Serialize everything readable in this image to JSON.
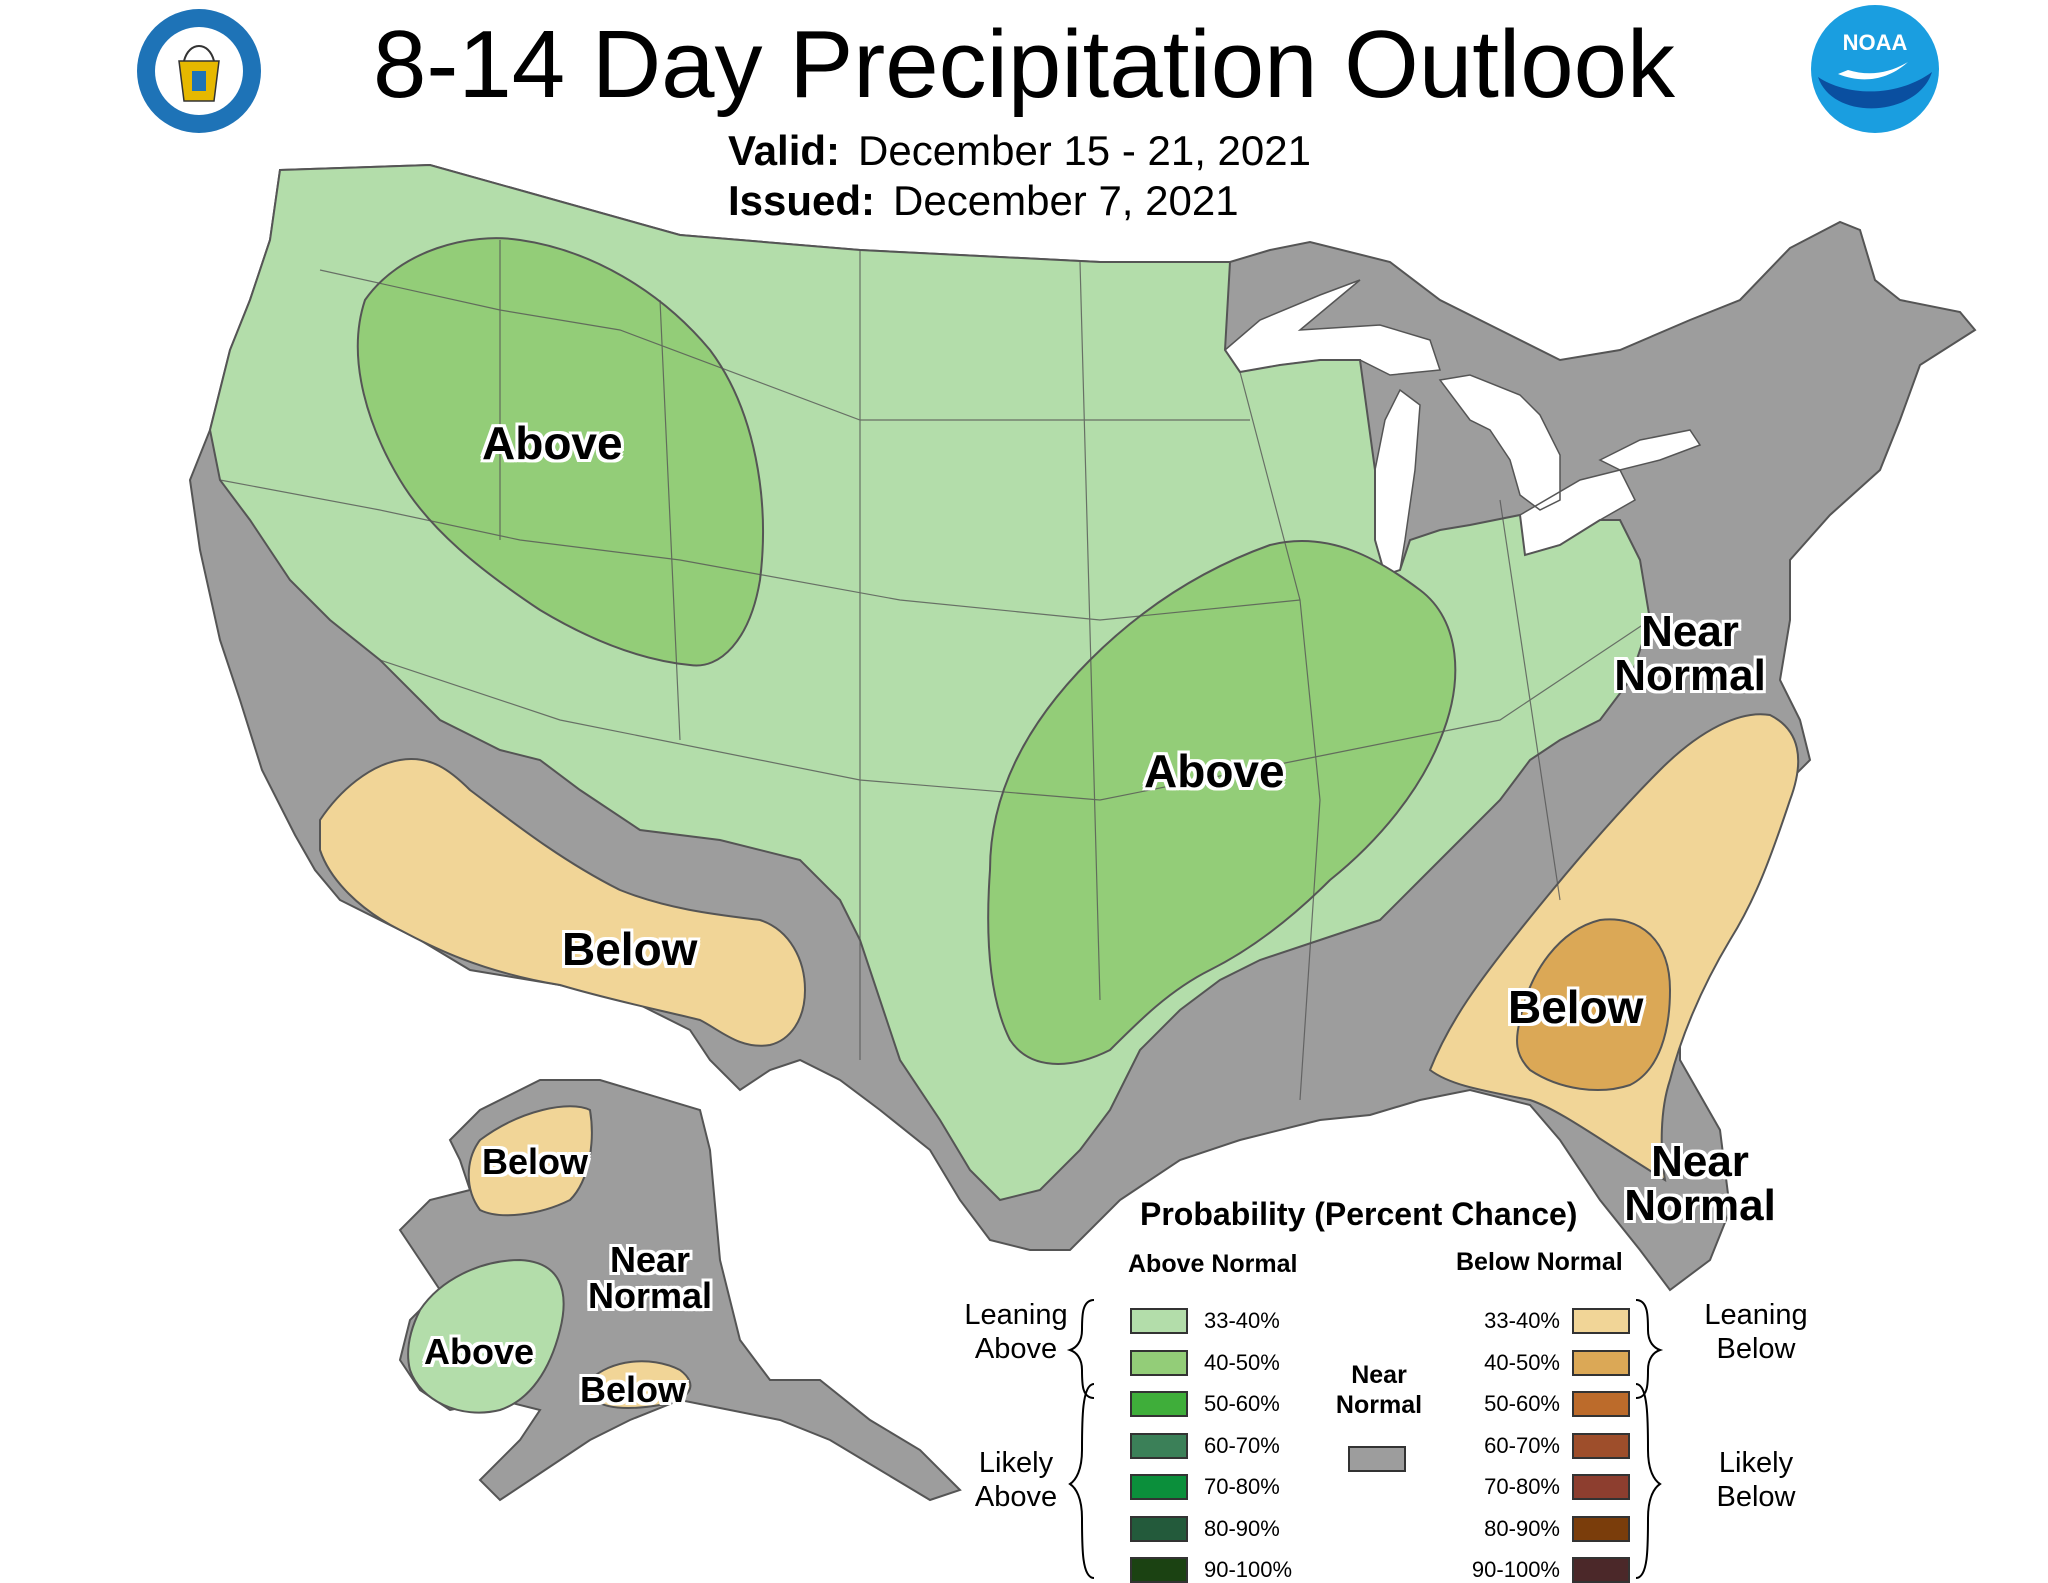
{
  "header": {
    "title": "8-14 Day Precipitation Outlook",
    "valid_label": "Valid:",
    "valid_value": "December 15 - 21, 2021",
    "issued_label": "Issued:",
    "issued_value": "December 7, 2021"
  },
  "logos": {
    "commerce": "department-of-commerce-seal",
    "noaa": "NOAA"
  },
  "map_labels": {
    "northwest_above": "Above",
    "central_above": "Above",
    "southwest_below": "Below",
    "southeast_below": "Below",
    "mid_atlantic_near_normal": "Near Normal",
    "florida_near_normal": "Near Normal",
    "alaska_below_north": "Below",
    "alaska_near_normal": "Near Normal",
    "alaska_above": "Above",
    "alaska_below_south": "Below"
  },
  "legend": {
    "title": "Probability (Percent Chance)",
    "above_header": "Above Normal",
    "below_header": "Below Normal",
    "near_normal_header": "Near Normal",
    "leaning_above": "Leaning Above",
    "likely_above": "Likely Above",
    "leaning_below": "Leaning Below",
    "likely_below": "Likely Below",
    "above_classes": [
      {
        "range": "33-40%",
        "color": "#b3ddaa"
      },
      {
        "range": "40-50%",
        "color": "#93cd78"
      },
      {
        "range": "50-60%",
        "color": "#3fae3a"
      },
      {
        "range": "60-70%",
        "color": "#3b8058"
      },
      {
        "range": "70-80%",
        "color": "#0b8f3b"
      },
      {
        "range": "80-90%",
        "color": "#235a3b"
      },
      {
        "range": "90-100%",
        "color": "#1b4212"
      }
    ],
    "below_classes": [
      {
        "range": "33-40%",
        "color": "#f1d597"
      },
      {
        "range": "40-50%",
        "color": "#dba856"
      },
      {
        "range": "50-60%",
        "color": "#bc6b2b"
      },
      {
        "range": "60-70%",
        "color": "#9e4e2b"
      },
      {
        "range": "70-80%",
        "color": "#8d3e2f"
      },
      {
        "range": "80-90%",
        "color": "#7a3d0b"
      },
      {
        "range": "90-100%",
        "color": "#4b2829"
      }
    ],
    "near_normal_color": "#9d9d9d"
  }
}
